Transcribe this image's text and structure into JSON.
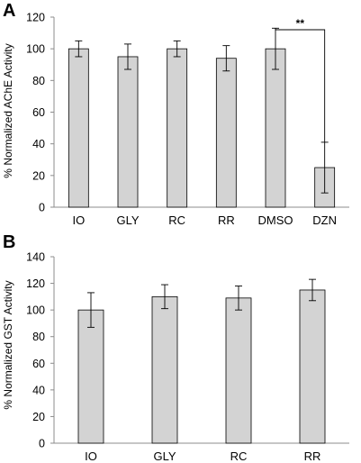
{
  "chart_data": [
    {
      "panel": "A",
      "type": "bar",
      "categories": [
        "IO",
        "GLY",
        "RC",
        "RR",
        "DMSO",
        "DZN"
      ],
      "values": [
        100,
        95,
        100,
        94,
        100,
        25
      ],
      "error": [
        5,
        8,
        5,
        8,
        13,
        16
      ],
      "ylabel": "% Normalized AChE Activity",
      "ylim": [
        0,
        120
      ],
      "yticks": [
        0,
        20,
        40,
        60,
        80,
        100,
        120
      ],
      "grid": false,
      "bar_color": "#d3d3d3",
      "significance": {
        "from": "DMSO",
        "to": "DZN",
        "label": "**"
      }
    },
    {
      "panel": "B",
      "type": "bar",
      "categories": [
        "IO",
        "GLY",
        "RC",
        "RR"
      ],
      "values": [
        100,
        110,
        109,
        115
      ],
      "error": [
        13,
        9,
        9,
        8
      ],
      "ylabel": "% Normalized GST Activity",
      "ylim": [
        0,
        140
      ],
      "yticks": [
        0,
        20,
        40,
        60,
        80,
        100,
        120,
        140
      ],
      "grid": false,
      "bar_color": "#d3d3d3"
    }
  ]
}
